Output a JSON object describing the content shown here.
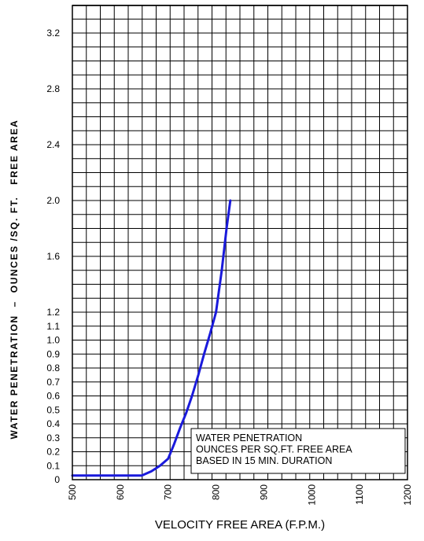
{
  "chart_data": {
    "type": "line",
    "title": "",
    "xlabel": "VELOCITY FREE AREA (F.P.M.)",
    "ylabel": "WATER PENETRATION  –  OUNCES /SQ. FT.   FREE AREA",
    "xlim": [
      500,
      1200
    ],
    "x_ticks": [
      500,
      600,
      700,
      800,
      900,
      1000,
      1100,
      1200
    ],
    "y_scale": "piecewise: 0.1 per unit from 0 to 1.2, then 0.4 per unit (expanded upper scale) from 1.2 to 3.4",
    "y_ticks": [
      {
        "value": 0,
        "label": "0"
      },
      {
        "value": 0.1,
        "label": "0.1"
      },
      {
        "value": 0.2,
        "label": "0.2"
      },
      {
        "value": 0.3,
        "label": "0.3"
      },
      {
        "value": 0.4,
        "label": "0.4"
      },
      {
        "value": 0.5,
        "label": "0.5"
      },
      {
        "value": 0.6,
        "label": "0.6"
      },
      {
        "value": 0.7,
        "label": "0.7"
      },
      {
        "value": 0.8,
        "label": "0.8"
      },
      {
        "value": 0.9,
        "label": "0.9"
      },
      {
        "value": 1.0,
        "label": "1.0"
      },
      {
        "value": 1.1,
        "label": "1.1"
      },
      {
        "value": 1.2,
        "label": "1.2"
      },
      {
        "value": 1.6,
        "label": "1.6"
      },
      {
        "value": 2.0,
        "label": "2.0"
      },
      {
        "value": 2.4,
        "label": "2.4"
      },
      {
        "value": 2.8,
        "label": "2.8"
      },
      {
        "value": 3.2,
        "label": "3.2"
      }
    ],
    "grid": true,
    "series": [
      {
        "name": "",
        "color": "#1a1adb",
        "points": [
          {
            "x": 500,
            "y": 0.03
          },
          {
            "x": 550,
            "y": 0.03
          },
          {
            "x": 600,
            "y": 0.03
          },
          {
            "x": 645,
            "y": 0.03
          },
          {
            "x": 665,
            "y": 0.06
          },
          {
            "x": 683,
            "y": 0.1
          },
          {
            "x": 700,
            "y": 0.15
          },
          {
            "x": 712,
            "y": 0.25
          },
          {
            "x": 725,
            "y": 0.37
          },
          {
            "x": 738,
            "y": 0.48
          },
          {
            "x": 750,
            "y": 0.6
          },
          {
            "x": 763,
            "y": 0.75
          },
          {
            "x": 775,
            "y": 0.9
          },
          {
            "x": 788,
            "y": 1.05
          },
          {
            "x": 800,
            "y": 1.2
          },
          {
            "x": 812,
            "y": 1.5
          },
          {
            "x": 822,
            "y": 1.8
          },
          {
            "x": 830,
            "y": 2.0
          }
        ]
      }
    ],
    "annotation": {
      "lines": [
        "WATER PENETRATION",
        "OUNCES PER SQ.FT. FREE AREA",
        "BASED IN 15 MIN. DURATION"
      ]
    }
  }
}
